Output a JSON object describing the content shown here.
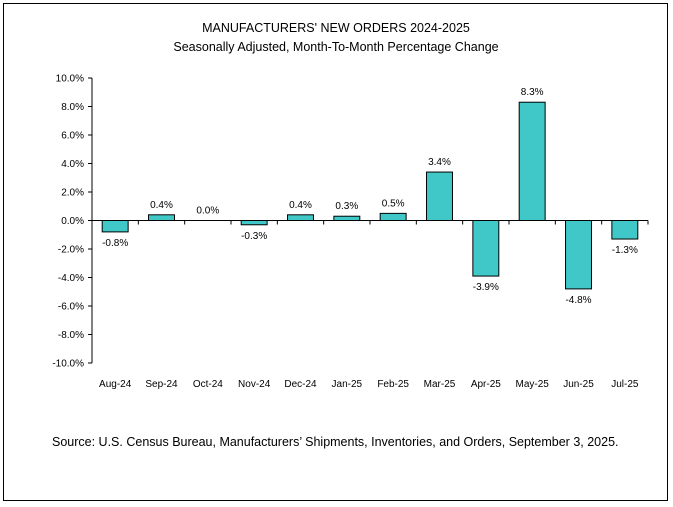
{
  "chart_data": {
    "type": "bar",
    "title": "MANUFACTURERS' NEW ORDERS 2024-2025",
    "subtitle": "Seasonally Adjusted,  Month-To-Month Percentage Change",
    "xlabel": "",
    "ylabel": "",
    "categories": [
      "Aug-24",
      "Sep-24",
      "Oct-24",
      "Nov-24",
      "Dec-24",
      "Jan-25",
      "Feb-25",
      "Mar-25",
      "Apr-25",
      "May-25",
      "Jun-25",
      "Jul-25"
    ],
    "values": [
      -0.8,
      0.4,
      0.0,
      -0.3,
      0.4,
      0.3,
      0.5,
      3.4,
      -3.9,
      8.3,
      -4.8,
      -1.3
    ],
    "data_labels": [
      "-0.8%",
      "0.4%",
      "0.0%",
      "-0.3%",
      "0.4%",
      "0.3%",
      "0.5%",
      "3.4%",
      "-3.9%",
      "8.3%",
      "-4.8%",
      "-1.3%"
    ],
    "ylim": [
      -10,
      10
    ],
    "y_ticks": [
      10,
      8,
      6,
      4,
      2,
      0,
      -2,
      -4,
      -6,
      -8,
      -10
    ],
    "y_tick_labels": [
      "10.0%",
      "8.0%",
      "6.0%",
      "4.0%",
      "2.0%",
      "0.0%",
      "-2.0%",
      "-4.0%",
      "-6.0%",
      "-8.0%",
      "-10.0%"
    ],
    "grid": false,
    "bar_color": "#40C8C8",
    "bar_border_color": "#000000"
  },
  "source": "Source: U.S. Census Bureau, Manufacturers’ Shipments, Inventories, and Orders, September 3, 2025."
}
